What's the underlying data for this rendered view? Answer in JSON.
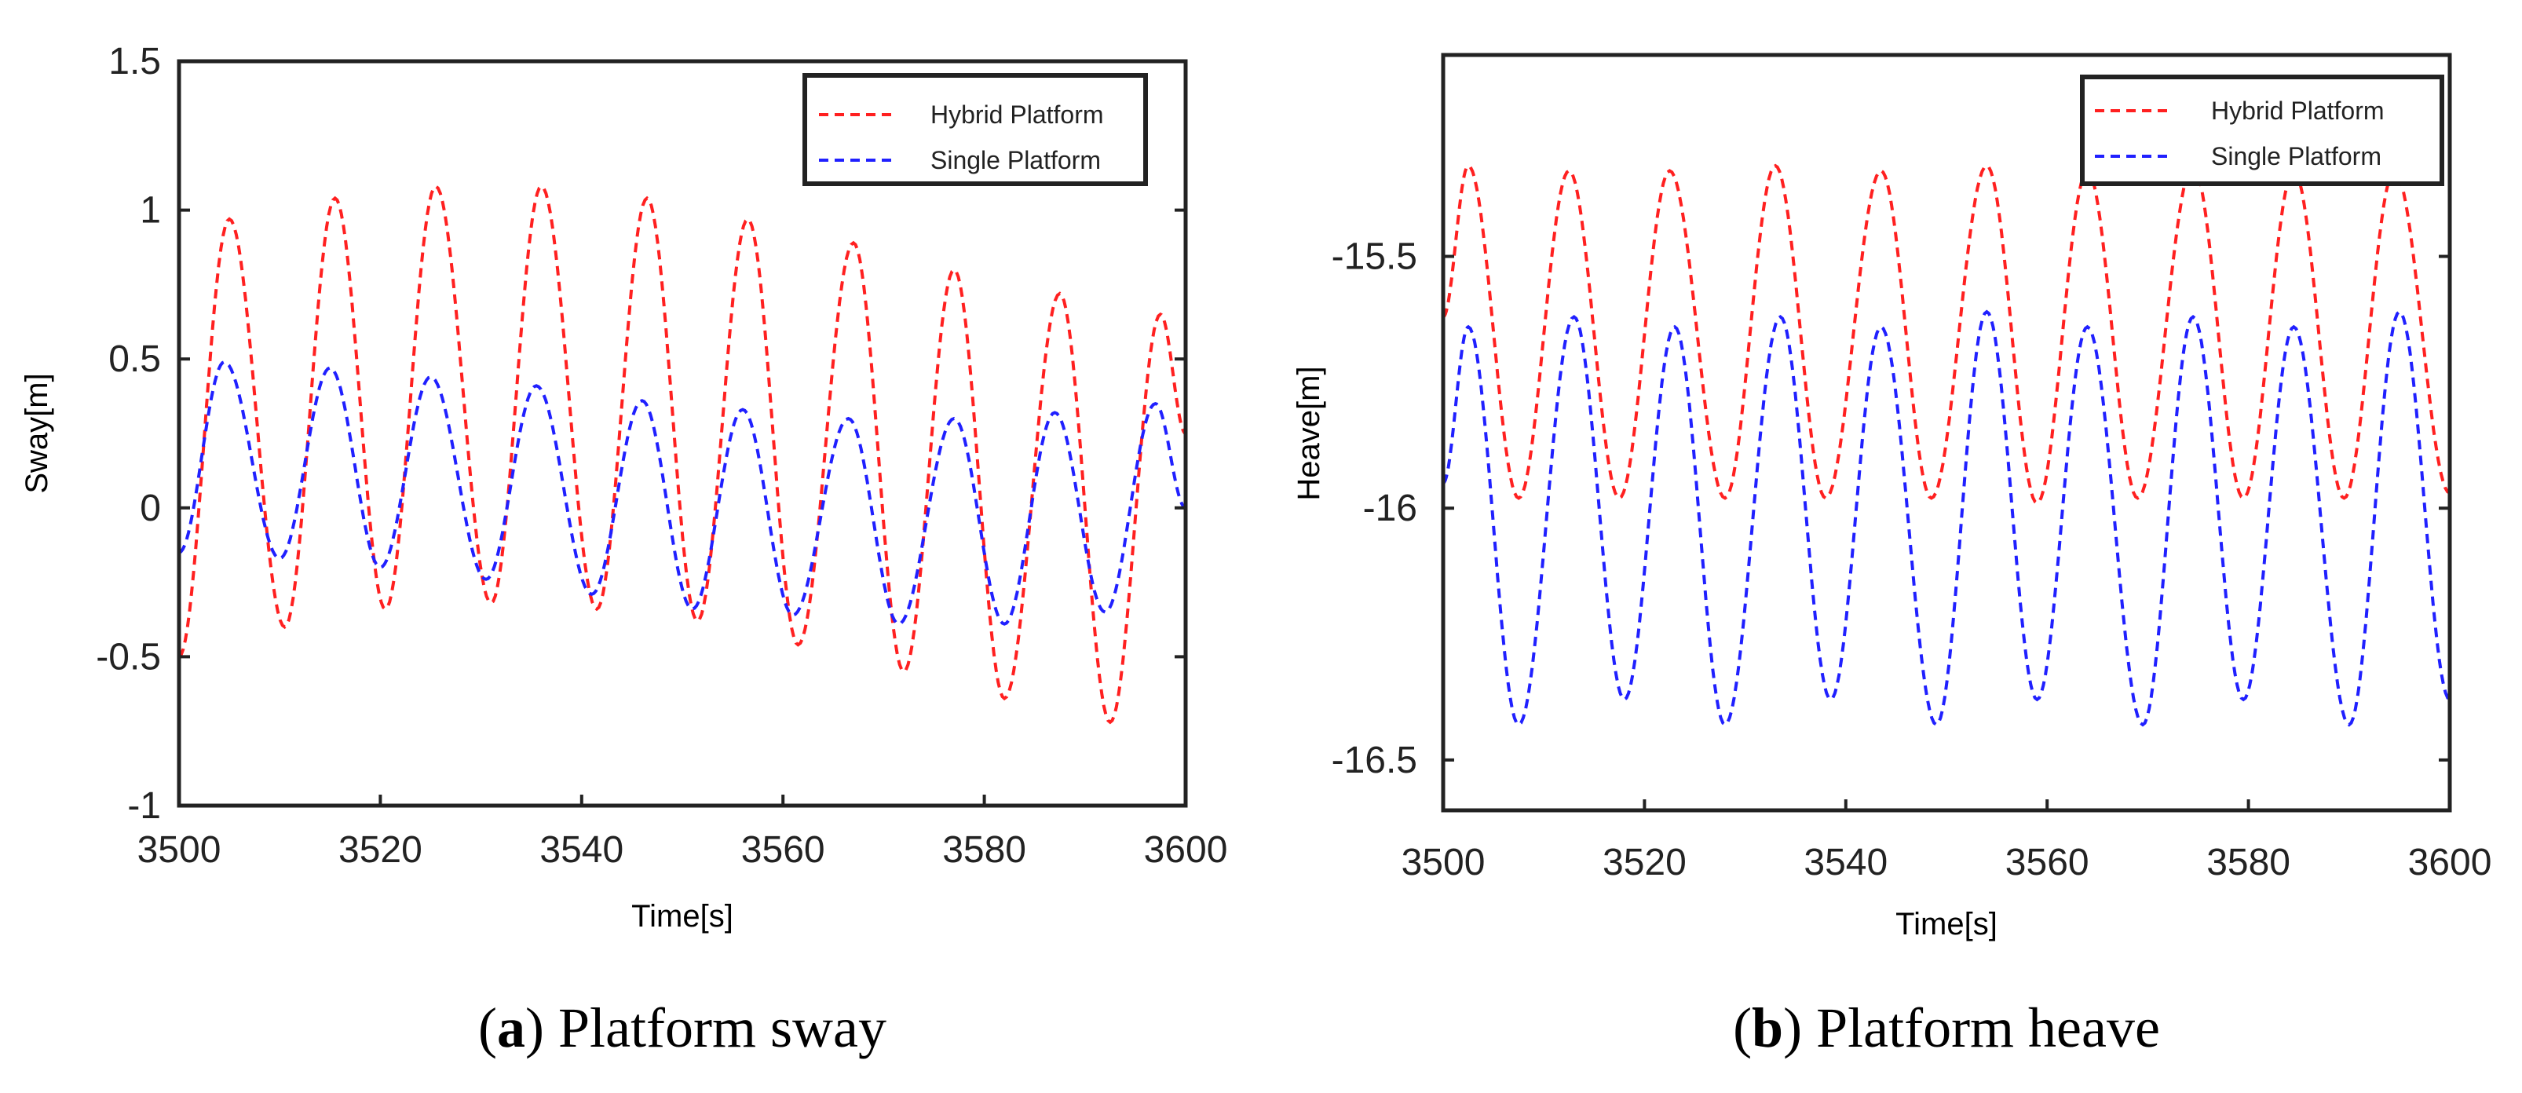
{
  "chart_data": [
    {
      "type": "line",
      "caption_letter": "a",
      "caption_text": "Platform sway",
      "title": "",
      "xlabel": "Time[s]",
      "ylabel": "Sway[m]",
      "xlim": [
        3500,
        3600
      ],
      "ylim": [
        -1,
        1.5
      ],
      "xticks": [
        3500,
        3520,
        3540,
        3560,
        3580,
        3600
      ],
      "xtick_labels": [
        "3500",
        "3520",
        "3540",
        "3560",
        "3580",
        "3600"
      ],
      "yticks": [
        -1,
        -0.5,
        0,
        0.5,
        1,
        1.5
      ],
      "ytick_labels": [
        "-1",
        "-0.5",
        "0",
        "0.5",
        "1",
        "1.5"
      ],
      "legend_position": "top-right",
      "series": [
        {
          "name": "Hybrid Platform",
          "color": "#ff2020",
          "style": "dashed",
          "x": [
            3500,
            3505,
            3510.5,
            3515.5,
            3520.5,
            3525.5,
            3531,
            3536,
            3541.5,
            3546.5,
            3551.5,
            3556.5,
            3561.5,
            3567,
            3572,
            3577,
            3582,
            3587.5,
            3592.5,
            3597.5,
            3600
          ],
          "y": [
            -0.5,
            0.97,
            -0.4,
            1.04,
            -0.34,
            1.08,
            -0.32,
            1.08,
            -0.34,
            1.04,
            -0.38,
            0.97,
            -0.46,
            0.89,
            -0.55,
            0.8,
            -0.64,
            0.72,
            -0.72,
            0.65,
            0.25
          ]
        },
        {
          "name": "Single Platform",
          "color": "#2020ff",
          "style": "dashed",
          "x": [
            3500,
            3504.5,
            3510,
            3515,
            3520,
            3525,
            3530.5,
            3535.5,
            3541,
            3546,
            3551,
            3556,
            3561,
            3566.5,
            3571.5,
            3577,
            3582,
            3587,
            3592,
            3597,
            3600
          ],
          "y": [
            -0.15,
            0.49,
            -0.17,
            0.47,
            -0.2,
            0.44,
            -0.24,
            0.41,
            -0.29,
            0.36,
            -0.34,
            0.33,
            -0.36,
            0.3,
            -0.39,
            0.3,
            -0.39,
            0.32,
            -0.35,
            0.35,
            0.0
          ]
        }
      ]
    },
    {
      "type": "line",
      "caption_letter": "b",
      "caption_text": "Platform heave",
      "title": "",
      "xlabel": "Time[s]",
      "ylabel": "Heave[m]",
      "xlim": [
        3500,
        3600
      ],
      "ylim": [
        -16.6,
        -15.1
      ],
      "xticks": [
        3500,
        3520,
        3540,
        3560,
        3580,
        3600
      ],
      "xtick_labels": [
        "3500",
        "3520",
        "3540",
        "3560",
        "3580",
        "3600"
      ],
      "yticks": [
        -16.5,
        -16,
        -15.5
      ],
      "ytick_labels": [
        "-16.5",
        "-16",
        "-15.5"
      ],
      "legend_position": "top-right",
      "series": [
        {
          "name": "Hybrid Platform",
          "color": "#ff2020",
          "style": "dashed",
          "x": [
            3500,
            3502.5,
            3507.5,
            3512.5,
            3517.5,
            3522.5,
            3528,
            3533,
            3538,
            3543.5,
            3548.5,
            3554,
            3559,
            3564,
            3569,
            3574.5,
            3579.5,
            3584.5,
            3589.5,
            3594.5,
            3600
          ],
          "y": [
            -15.62,
            -15.32,
            -15.98,
            -15.33,
            -15.98,
            -15.33,
            -15.98,
            -15.32,
            -15.98,
            -15.33,
            -15.98,
            -15.32,
            -15.99,
            -15.33,
            -15.98,
            -15.32,
            -15.98,
            -15.33,
            -15.98,
            -15.33,
            -15.97
          ]
        },
        {
          "name": "Single Platform",
          "color": "#2020ff",
          "style": "dashed",
          "x": [
            3500,
            3502.5,
            3507.5,
            3513,
            3518,
            3523,
            3528,
            3533.5,
            3538.5,
            3543.5,
            3549,
            3554,
            3559,
            3564,
            3569.5,
            3574.5,
            3579.5,
            3584.5,
            3590,
            3595,
            3600
          ],
          "y": [
            -15.95,
            -15.64,
            -16.43,
            -15.62,
            -16.38,
            -15.64,
            -16.43,
            -15.62,
            -16.38,
            -15.64,
            -16.43,
            -15.61,
            -16.38,
            -15.64,
            -16.43,
            -15.62,
            -16.38,
            -15.64,
            -16.43,
            -15.61,
            -16.38
          ]
        }
      ]
    }
  ]
}
